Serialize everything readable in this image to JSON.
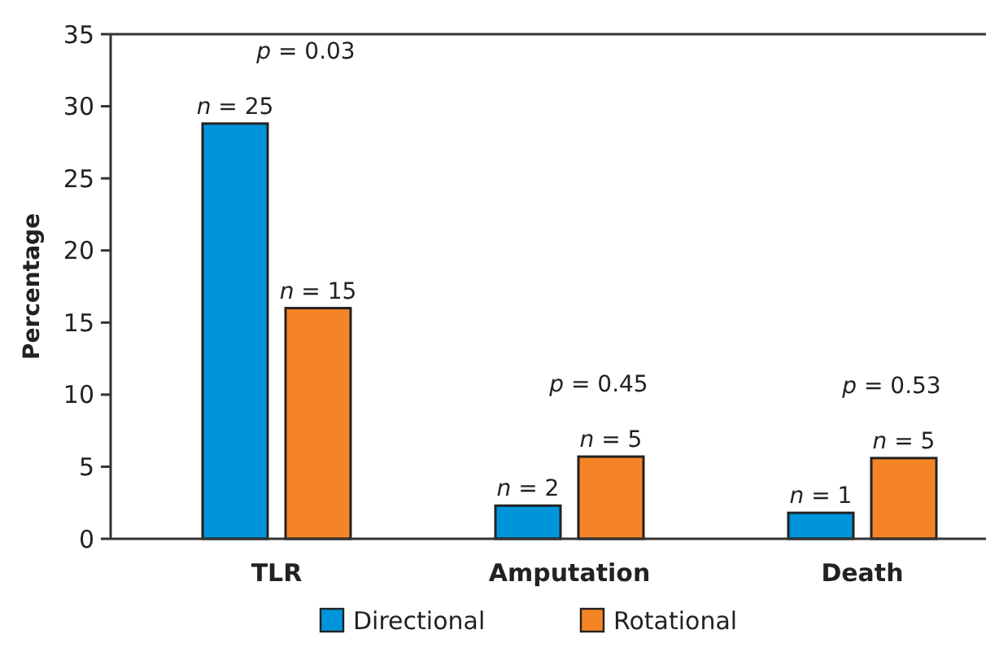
{
  "chart_data": {
    "type": "bar",
    "ylabel": "Percentage",
    "categories": [
      "TLR",
      "Amputation",
      "Death"
    ],
    "series": [
      {
        "name": "Directional",
        "color": "#0095db",
        "values": [
          28.8,
          2.3,
          1.8
        ]
      },
      {
        "name": "Rotational",
        "color": "#f58426",
        "values": [
          16.0,
          5.7,
          5.6
        ]
      }
    ],
    "ylim": [
      0,
      35
    ],
    "yticks": [
      0,
      5,
      10,
      15,
      20,
      25,
      30,
      35
    ],
    "grid": false,
    "legend": "bottom",
    "annotations": [
      "p = 0.03",
      "n = 25",
      "n = 15",
      "p = 0.45",
      "n = 2",
      "n = 5",
      "p = 0.53",
      "n = 1",
      "n = 5"
    ]
  }
}
